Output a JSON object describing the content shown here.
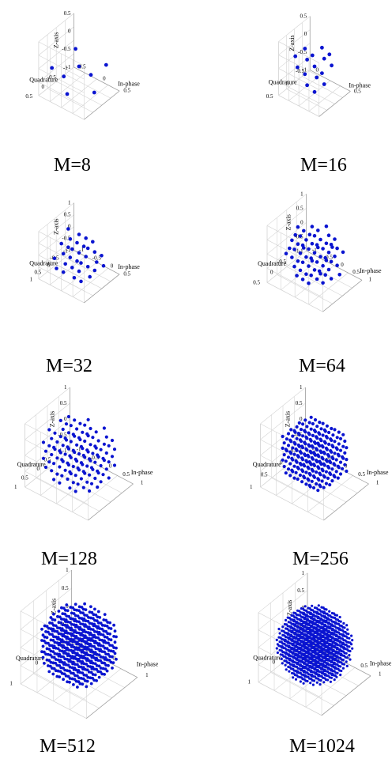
{
  "chart_data": [
    {
      "type": "scatter",
      "title": "",
      "caption": "M=8",
      "m": 8,
      "xlabel": "In-phase",
      "ylabel": "Quadrature",
      "zlabel": "Z-axis",
      "x_ticks": [
        "-0.5",
        "0",
        "0.5"
      ],
      "y_ticks": [
        "0.5",
        "0",
        "-0.5",
        "-1"
      ],
      "z_ticks": [
        "0.5",
        "0",
        "-0.5",
        "-1"
      ],
      "xlim": [
        -1,
        1
      ],
      "ylim": [
        -1,
        1
      ],
      "zlim": [
        -1,
        1
      ],
      "grid": true
    },
    {
      "type": "scatter",
      "title": "",
      "caption": "M=16",
      "m": 16,
      "xlabel": "In-phase",
      "ylabel": "Quadrature",
      "zlabel": "Z-axis",
      "x_ticks": [
        "0",
        "0.5"
      ],
      "y_ticks": [
        "0.5",
        "0",
        "-0.5"
      ],
      "z_ticks": [
        "0.5",
        "0",
        "-0.5",
        "-1"
      ],
      "xlim": [
        -1,
        1
      ],
      "ylim": [
        -1,
        1
      ],
      "zlim": [
        -1,
        1
      ],
      "grid": true
    },
    {
      "type": "scatter",
      "title": "",
      "caption": "M=32",
      "m": 32,
      "xlabel": "In-phase",
      "ylabel": "Quadrature",
      "zlabel": "Z-axis",
      "x_ticks": [
        "-1",
        "-0.5",
        "0",
        "0.5"
      ],
      "y_ticks": [
        "1",
        "0.5",
        "0",
        "-0.5",
        "-1"
      ],
      "z_ticks": [
        "1",
        "0.5",
        "0",
        "-0.5",
        "-1"
      ],
      "xlim": [
        -1,
        1
      ],
      "ylim": [
        -1,
        1
      ],
      "zlim": [
        -1,
        1
      ],
      "grid": true
    },
    {
      "type": "scatter",
      "title": "",
      "caption": "M=64",
      "m": 64,
      "xlabel": "In-phase",
      "ylabel": "Quadrature",
      "zlabel": "Z-axis",
      "x_ticks": [
        "-1",
        "-0.5",
        "0",
        "0.5",
        "1"
      ],
      "y_ticks": [
        "0.5",
        "0",
        "-0.5",
        "-1"
      ],
      "z_ticks": [
        "1",
        "0.5",
        "0",
        "-0.5",
        "-1"
      ],
      "xlim": [
        -1,
        1
      ],
      "ylim": [
        -1,
        1
      ],
      "zlim": [
        -1,
        1
      ],
      "grid": true
    },
    {
      "type": "scatter",
      "title": "",
      "caption": "M=128",
      "m": 128,
      "xlabel": "In-phase",
      "ylabel": "Quadrature",
      "zlabel": "Z-axis",
      "x_ticks": [
        "-1",
        "-0.5",
        "0",
        "0.5",
        "1"
      ],
      "y_ticks": [
        "1",
        "0.5",
        "0",
        "0.5",
        "1"
      ],
      "z_ticks": [
        "1",
        "0.5",
        "0",
        "-0.5",
        "-1"
      ],
      "xlim": [
        -1,
        1
      ],
      "ylim": [
        -1,
        1
      ],
      "zlim": [
        -1,
        1
      ],
      "grid": true
    },
    {
      "type": "scatter",
      "title": "",
      "caption": "M=256",
      "m": 256,
      "xlabel": "In-phase",
      "ylabel": "Quadrature",
      "zlabel": "Z-axis",
      "x_ticks": [
        "-1",
        "-0.5",
        "0",
        "0.5",
        "1"
      ],
      "y_ticks": [
        "1",
        "0.5",
        "0",
        "-0.5"
      ],
      "z_ticks": [
        "1",
        "0.5",
        "0",
        "-0.5",
        "-1"
      ],
      "xlim": [
        -1,
        1
      ],
      "ylim": [
        -1,
        1
      ],
      "zlim": [
        -1,
        1
      ],
      "grid": true
    },
    {
      "type": "scatter",
      "title": "",
      "caption": "M=512",
      "m": 512,
      "xlabel": "In-phase",
      "ylabel": "Quadrature",
      "zlabel": "Z-axis",
      "x_ticks": [
        "-1",
        "0",
        "1"
      ],
      "y_ticks": [
        "1",
        "0",
        "-1"
      ],
      "z_ticks": [
        "1",
        "0.5",
        "0",
        "-0.5",
        "-1"
      ],
      "xlim": [
        -1,
        1
      ],
      "ylim": [
        -1,
        1
      ],
      "zlim": [
        -1,
        1
      ],
      "grid": true
    },
    {
      "type": "scatter",
      "title": "",
      "caption": "M=1024",
      "m": 1024,
      "xlabel": "In-phase",
      "ylabel": "Quadrature",
      "zlabel": "Z-axis",
      "x_ticks": [
        "-1",
        "-0.5",
        "0",
        "0.5",
        "1"
      ],
      "y_ticks": [
        "1",
        "0",
        "-1"
      ],
      "z_ticks": [
        "1",
        "0.5",
        "0",
        "-0.5",
        "-1"
      ],
      "xlim": [
        -1,
        1
      ],
      "ylim": [
        -1,
        1
      ],
      "zlim": [
        -1,
        1
      ],
      "grid": true
    }
  ],
  "colors": {
    "points": "#0a14d0",
    "grid": "#d4d4d4",
    "box": "#9a9a9a"
  }
}
